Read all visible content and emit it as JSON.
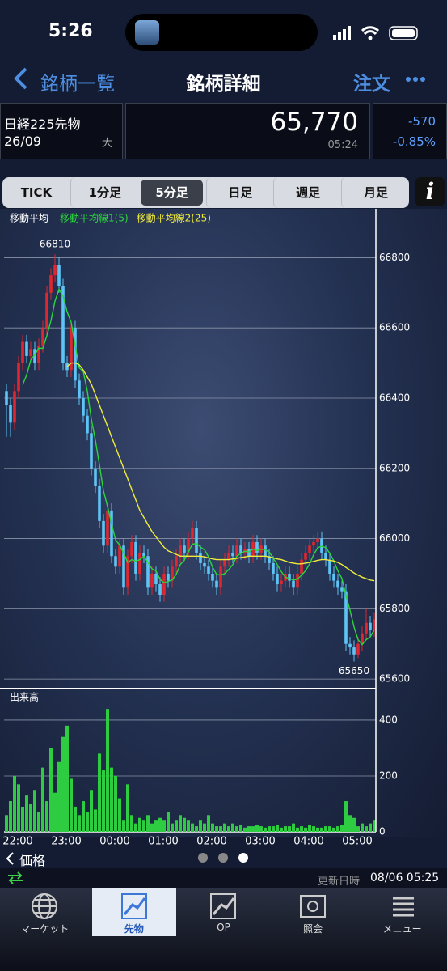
{
  "status_bar": {
    "time": "5:26"
  },
  "nav": {
    "back": "銘柄一覧",
    "title": "銘柄詳細",
    "order": "注文"
  },
  "quote": {
    "name": "日経225先物",
    "contract": "26/09",
    "size": "大",
    "price": "65,770",
    "time": "05:24",
    "change": "-570",
    "change_pct": "-0.85%"
  },
  "tabs": [
    "TICK",
    "1分足",
    "5分足",
    "日足",
    "週足",
    "月足"
  ],
  "selected_tab": 2,
  "chart_data": [
    {
      "type": "candlestick",
      "legend_title": "移動平均",
      "up_color": "#e0262f",
      "down_color": "#5ec4f5",
      "open": [
        66420,
        66380,
        66330,
        66420,
        66500,
        66560,
        66520,
        66540,
        66500,
        66550,
        66600,
        66700,
        66750,
        66780,
        66720,
        66500,
        66480,
        66600,
        66450,
        66400,
        66350,
        66300,
        66200,
        66150,
        66050,
        65980,
        66080,
        65950,
        65920,
        65980,
        65860,
        65950,
        65990,
        65900,
        65960,
        65950,
        65860,
        65900,
        65870,
        65840,
        65900,
        65880,
        65920,
        65950,
        65980,
        65960,
        66000,
        66030,
        65960,
        65930,
        65920,
        65900,
        65880,
        65860,
        65920,
        65940,
        65960,
        65950,
        65980,
        65960,
        65970,
        65950,
        65990,
        65960,
        65980,
        65950,
        65930,
        65900,
        65870,
        65880,
        65900,
        65880,
        65860,
        65900,
        65940,
        65960,
        65980,
        65990,
        66000,
        65960,
        65940,
        65900,
        65880,
        65860,
        65850,
        65700,
        65690,
        65670,
        65700,
        65730,
        65760,
        65740
      ],
      "high": [
        66440,
        66400,
        66440,
        66520,
        66580,
        66580,
        66560,
        66560,
        66570,
        66620,
        66720,
        66770,
        66810,
        66800,
        66740,
        66520,
        66620,
        66620,
        66470,
        66420,
        66370,
        66320,
        66220,
        66170,
        66070,
        66100,
        66100,
        65970,
        66000,
        66000,
        65970,
        66010,
        66010,
        65980,
        65980,
        65970,
        65920,
        65920,
        65890,
        65920,
        65920,
        65940,
        65970,
        66000,
        66000,
        66020,
        66050,
        66050,
        65980,
        65950,
        65940,
        65920,
        65900,
        65940,
        65960,
        65980,
        65980,
        66000,
        66000,
        65990,
        65990,
        66010,
        66010,
        66000,
        66000,
        65970,
        65950,
        65920,
        65900,
        65920,
        65920,
        65900,
        65920,
        65960,
        65980,
        66000,
        66010,
        66020,
        66020,
        65980,
        65960,
        65920,
        65900,
        65880,
        65870,
        65720,
        65710,
        65720,
        65750,
        65800,
        65780,
        65790
      ],
      "low": [
        66290,
        66290,
        66310,
        66400,
        66480,
        66500,
        66500,
        66480,
        66480,
        66530,
        66580,
        66680,
        66730,
        66700,
        66480,
        66460,
        66460,
        66430,
        66380,
        66330,
        66280,
        66180,
        66130,
        66030,
        65960,
        65960,
        65930,
        65900,
        65900,
        65840,
        65840,
        65930,
        65880,
        65880,
        65930,
        65840,
        65840,
        65850,
        65820,
        65820,
        65860,
        65860,
        65900,
        65930,
        65940,
        65940,
        65980,
        65940,
        65910,
        65900,
        65880,
        65860,
        65840,
        65840,
        65900,
        65920,
        65930,
        65930,
        65940,
        65940,
        65930,
        65930,
        65940,
        65940,
        65930,
        65910,
        65880,
        65850,
        65850,
        65860,
        65860,
        65840,
        65840,
        65880,
        65920,
        65940,
        65960,
        65970,
        65940,
        65920,
        65880,
        65860,
        65840,
        65830,
        65680,
        65670,
        65650,
        65660,
        65680,
        65710,
        65720,
        65720
      ],
      "close": [
        66380,
        66330,
        66420,
        66500,
        66560,
        66520,
        66540,
        66500,
        66550,
        66600,
        66700,
        66750,
        66780,
        66720,
        66500,
        66480,
        66600,
        66450,
        66400,
        66350,
        66300,
        66200,
        66150,
        66050,
        65980,
        66080,
        65950,
        65920,
        65980,
        65860,
        65950,
        65990,
        65900,
        65960,
        65950,
        65860,
        65900,
        65870,
        65840,
        65900,
        65880,
        65920,
        65950,
        65980,
        65960,
        66000,
        66030,
        65960,
        65930,
        65920,
        65900,
        65880,
        65860,
        65920,
        65940,
        65960,
        65950,
        65980,
        65960,
        65970,
        65950,
        65990,
        65960,
        65980,
        65950,
        65930,
        65900,
        65870,
        65880,
        65900,
        65880,
        65860,
        65900,
        65940,
        65960,
        65980,
        65990,
        66000,
        65960,
        65940,
        65900,
        65880,
        65860,
        65850,
        65700,
        65690,
        65670,
        65700,
        65730,
        65760,
        65740,
        65770
      ],
      "high_label_index": 12,
      "low_label_index": 86,
      "series": [
        {
          "name": "移動平均線1(5)",
          "color": "#2bd63c",
          "values": [
            null,
            null,
            null,
            null,
            66438,
            66466,
            66508,
            66524,
            66542,
            66542,
            66578,
            66620,
            66676,
            66710,
            66690,
            66646,
            66616,
            66550,
            66486,
            66476,
            66420,
            66340,
            66280,
            66210,
            66136,
            66092,
            66042,
            65996,
            65982,
            65958,
            65932,
            65940,
            65936,
            65940,
            65950,
            65932,
            65914,
            65908,
            65884,
            65874,
            65878,
            65882,
            65898,
            65926,
            65938,
            65962,
            65984,
            65986,
            65976,
            65968,
            65948,
            65918,
            65898,
            65896,
            65900,
            65912,
            65926,
            65950,
            65958,
            65964,
            65962,
            65970,
            65966,
            65970,
            65968,
            65962,
            65944,
            65926,
            65906,
            65890,
            65886,
            65882,
            65884,
            65896,
            65908,
            65928,
            65954,
            65974,
            65978,
            65974,
            65958,
            65936,
            65908,
            65886,
            65838,
            65796,
            65748,
            65712,
            65698,
            65712,
            65720,
            65740
          ]
        },
        {
          "name": "移動平均線2(25)",
          "color": "#f0ec3a",
          "values": [
            null,
            null,
            null,
            null,
            null,
            null,
            null,
            null,
            null,
            null,
            null,
            null,
            null,
            null,
            null,
            66490,
            66500,
            66500,
            66495,
            66480,
            66460,
            66440,
            66410,
            66380,
            66350,
            66320,
            66290,
            66260,
            66230,
            66200,
            66170,
            66140,
            66110,
            66080,
            66060,
            66040,
            66020,
            66005,
            65990,
            65975,
            65965,
            65960,
            65955,
            65950,
            65950,
            65950,
            65950,
            65950,
            65950,
            65948,
            65945,
            65942,
            65940,
            65940,
            65940,
            65940,
            65942,
            65944,
            65946,
            65948,
            65950,
            65950,
            65950,
            65950,
            65950,
            65948,
            65945,
            65942,
            65940,
            65936,
            65932,
            65930,
            65928,
            65928,
            65930,
            65932,
            65935,
            65938,
            65940,
            65940,
            65938,
            65936,
            65932,
            65926,
            65918,
            65910,
            65902,
            65896,
            65890,
            65886,
            65882,
            65880
          ]
        }
      ],
      "ylim": [
        65575,
        66930
      ],
      "yticks": [
        65600,
        65800,
        66000,
        66200,
        66400,
        66600,
        66800
      ],
      "grid": true
    },
    {
      "type": "bar",
      "title": "出来高",
      "color": "#2ecc40",
      "categories": [
        null,
        null,
        "22:00",
        null,
        null,
        null,
        null,
        null,
        null,
        null,
        null,
        null,
        null,
        null,
        "23:00",
        null,
        null,
        null,
        null,
        null,
        null,
        null,
        null,
        null,
        null,
        null,
        "00:00",
        null,
        null,
        null,
        null,
        null,
        null,
        null,
        null,
        null,
        null,
        null,
        "01:00",
        null,
        null,
        null,
        null,
        null,
        null,
        null,
        null,
        null,
        null,
        null,
        "02:00",
        null,
        null,
        null,
        null,
        null,
        null,
        null,
        null,
        null,
        null,
        null,
        "03:00",
        null,
        null,
        null,
        null,
        null,
        null,
        null,
        null,
        null,
        null,
        null,
        "04:00",
        null,
        null,
        null,
        null,
        null,
        null,
        null,
        null,
        null,
        null,
        null,
        "05:00",
        null,
        null,
        null,
        null,
        null
      ],
      "values": [
        60,
        110,
        200,
        170,
        90,
        130,
        100,
        150,
        70,
        230,
        110,
        300,
        140,
        250,
        340,
        380,
        190,
        90,
        60,
        110,
        70,
        150,
        80,
        280,
        220,
        440,
        230,
        200,
        120,
        40,
        170,
        60,
        30,
        50,
        40,
        60,
        30,
        40,
        50,
        40,
        70,
        30,
        40,
        60,
        50,
        40,
        30,
        20,
        40,
        30,
        60,
        30,
        20,
        20,
        30,
        20,
        30,
        20,
        25,
        15,
        20,
        20,
        25,
        20,
        15,
        20,
        20,
        25,
        15,
        20,
        20,
        30,
        15,
        20,
        15,
        25,
        20,
        15,
        15,
        20,
        20,
        15,
        20,
        25,
        110,
        60,
        50,
        20,
        30,
        20,
        30,
        40
      ],
      "ylim": [
        0,
        510
      ],
      "yticks": [
        0,
        200,
        400
      ],
      "grid": true
    }
  ],
  "footer": {
    "back": "価格",
    "updated_label": "更新日時",
    "updated": "08/06 05:25"
  },
  "tab_bar": [
    "マーケット",
    "先物",
    "OP",
    "照会",
    "メニュー"
  ],
  "tab_bar_selected": 1
}
